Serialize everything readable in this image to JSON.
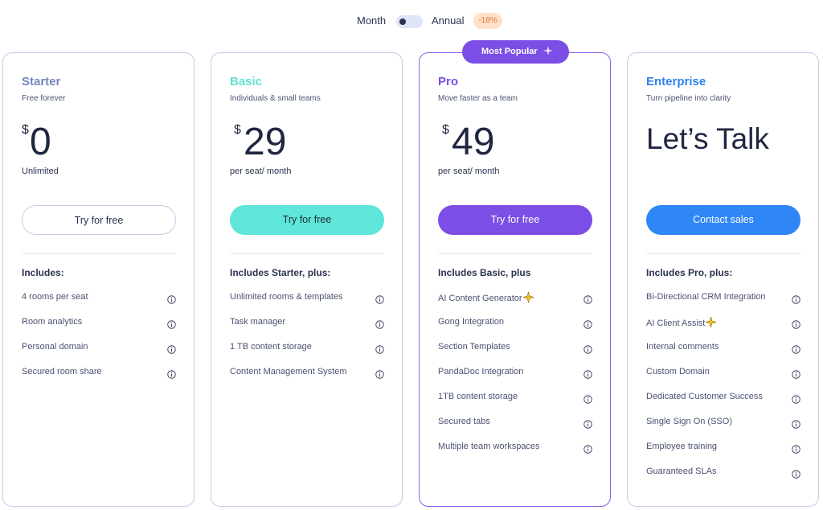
{
  "toggle": {
    "month": "Month",
    "annual": "Annual",
    "discount": "-18%"
  },
  "plans": [
    {
      "name": "Starter",
      "subtitle": "Free forever",
      "currency": "$",
      "price": 0,
      "price_note": "Unlimited",
      "cta": "Try for free",
      "includes_title": "Includes:",
      "features": [
        {
          "text": "4 rooms per seat"
        },
        {
          "text": "Room analytics"
        },
        {
          "text": "Personal domain"
        },
        {
          "text": "Secured room share"
        }
      ]
    },
    {
      "name": "Basic",
      "subtitle": "Individuals & small teams",
      "currency": "$",
      "price": 29,
      "price_note": "per seat/ month",
      "cta": "Try for free",
      "includes_title": "Includes Starter, plus:",
      "features": [
        {
          "text": "Unlimited rooms & templates"
        },
        {
          "text": "Task manager"
        },
        {
          "text": "1 TB content storage"
        },
        {
          "text": "Content Management System"
        }
      ]
    },
    {
      "name": "Pro",
      "badge": "Most Popular",
      "subtitle": "Move faster as a team",
      "currency": "$",
      "price": 49,
      "price_note": "per seat/ month",
      "cta": "Try for free",
      "includes_title": "Includes Basic, plus",
      "features": [
        {
          "text": "AI Content Generator",
          "ai": true
        },
        {
          "text": "Gong Integration"
        },
        {
          "text": "Section Templates"
        },
        {
          "text": "PandaDoc Integration"
        },
        {
          "text": "1TB content storage"
        },
        {
          "text": "Secured tabs"
        },
        {
          "text": "Multiple team workspaces"
        }
      ]
    },
    {
      "name": "Enterprise",
      "subtitle": "Turn pipeline into clarity",
      "price_text": "Let’s Talk",
      "cta": "Contact sales",
      "includes_title": "Includes Pro, plus:",
      "features": [
        {
          "text": "Bi-Directional CRM Integration"
        },
        {
          "text": "AI Client Assist",
          "ai": true
        },
        {
          "text": "Internal comments"
        },
        {
          "text": "Custom Domain"
        },
        {
          "text": "Dedicated Customer Success"
        },
        {
          "text": "Single Sign On (SSO)"
        },
        {
          "text": "Employee training"
        },
        {
          "text": "Guaranteed SLAs"
        }
      ]
    }
  ]
}
